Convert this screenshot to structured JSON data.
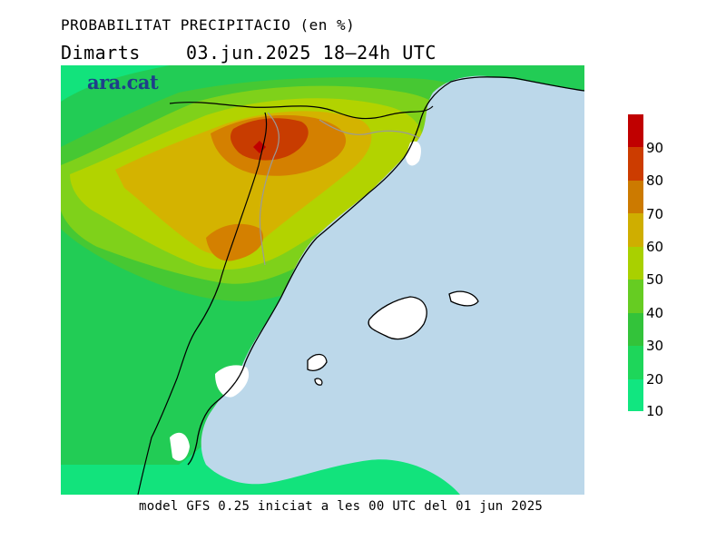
{
  "header": {
    "title": "PROBABILITAT PRECIPITACIO (en %)",
    "day": "Dimarts",
    "datetime": "03.jun.2025 18–24h UTC"
  },
  "logo": {
    "text": "ara.cat"
  },
  "footer": {
    "model_info": "model GFS 0.25 iniciat a les 00 UTC del 01 jun 2025"
  },
  "legend": {
    "labels": [
      "90",
      "80",
      "70",
      "60",
      "50",
      "40",
      "30",
      "20",
      "10"
    ],
    "colors": [
      "#c00000",
      "#cc3c00",
      "#cc7a00",
      "#cfae00",
      "#a9d000",
      "#66cc22",
      "#33c33a",
      "#1ed65a",
      "#11e680"
    ]
  },
  "map_colors": {
    "sea": "#bcd8ea",
    "land_low": "#12e37c",
    "p20": "#22cc55",
    "p30": "#46c833",
    "p40": "#7fd11a",
    "p50": "#b2d300",
    "p60": "#d4b300",
    "p70": "#d48000",
    "p80": "#c83c00",
    "p90": "#c00000",
    "unknown": "#ffffff"
  }
}
